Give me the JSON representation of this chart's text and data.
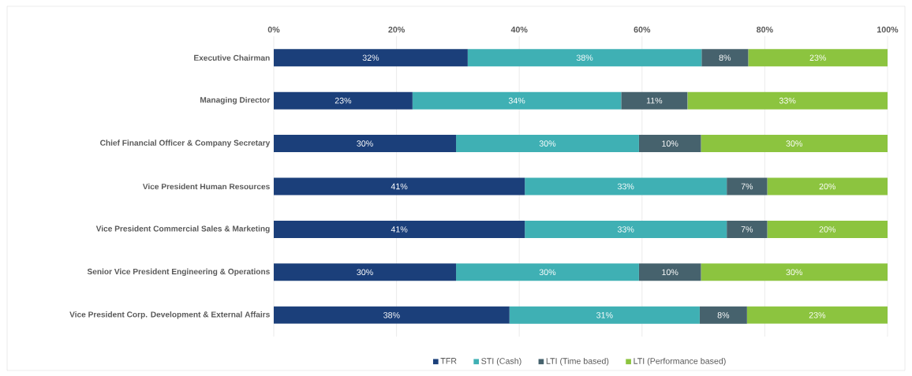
{
  "chart_data": {
    "type": "bar",
    "orientation": "horizontal",
    "stacked": true,
    "categories": [
      "Executive Chairman",
      "Managing Director",
      "Chief Financial Officer & Company Secretary",
      "Vice President Human Resources",
      "Vice President Commercial Sales & Marketing",
      "Senior Vice President Engineering & Operations",
      "Vice President Corp. Development & External Affairs"
    ],
    "series": [
      {
        "name": "TFR",
        "color": "#1b3f7a",
        "values": [
          31.6,
          22.6,
          29.7,
          40.9,
          40.9,
          29.7,
          38.4
        ],
        "value_labels": [
          "32%",
          "23%",
          "30%",
          "41%",
          "41%",
          "30%",
          "38%"
        ]
      },
      {
        "name": "STI (Cash)",
        "color": "#3fb0b4",
        "values": [
          38.1,
          34.0,
          29.8,
          32.9,
          32.9,
          29.8,
          31.0
        ],
        "value_labels": [
          "38%",
          "34%",
          "30%",
          "33%",
          "33%",
          "30%",
          "31%"
        ]
      },
      {
        "name": "LTI (Time based)",
        "color": "#46626d",
        "values": [
          7.6,
          10.8,
          10.1,
          6.6,
          6.6,
          10.1,
          7.7
        ],
        "value_labels": [
          "8%",
          "11%",
          "10%",
          "7%",
          "7%",
          "10%",
          "8%"
        ]
      },
      {
        "name": "LTI (Performance based)",
        "color": "#8cc43f",
        "values": [
          22.7,
          32.6,
          30.4,
          19.6,
          19.6,
          30.4,
          22.9
        ],
        "value_labels": [
          "23%",
          "33%",
          "30%",
          "20%",
          "20%",
          "30%",
          "23%"
        ]
      }
    ],
    "xlim": [
      0,
      100
    ],
    "xticks": [
      {
        "value": 0,
        "label": "0%"
      },
      {
        "value": 20,
        "label": "20%"
      },
      {
        "value": 40,
        "label": "40%"
      },
      {
        "value": 60,
        "label": "60%"
      },
      {
        "value": 80,
        "label": "80%"
      },
      {
        "value": 100,
        "label": "100%"
      }
    ],
    "grid": "x",
    "legend": "bottom"
  }
}
